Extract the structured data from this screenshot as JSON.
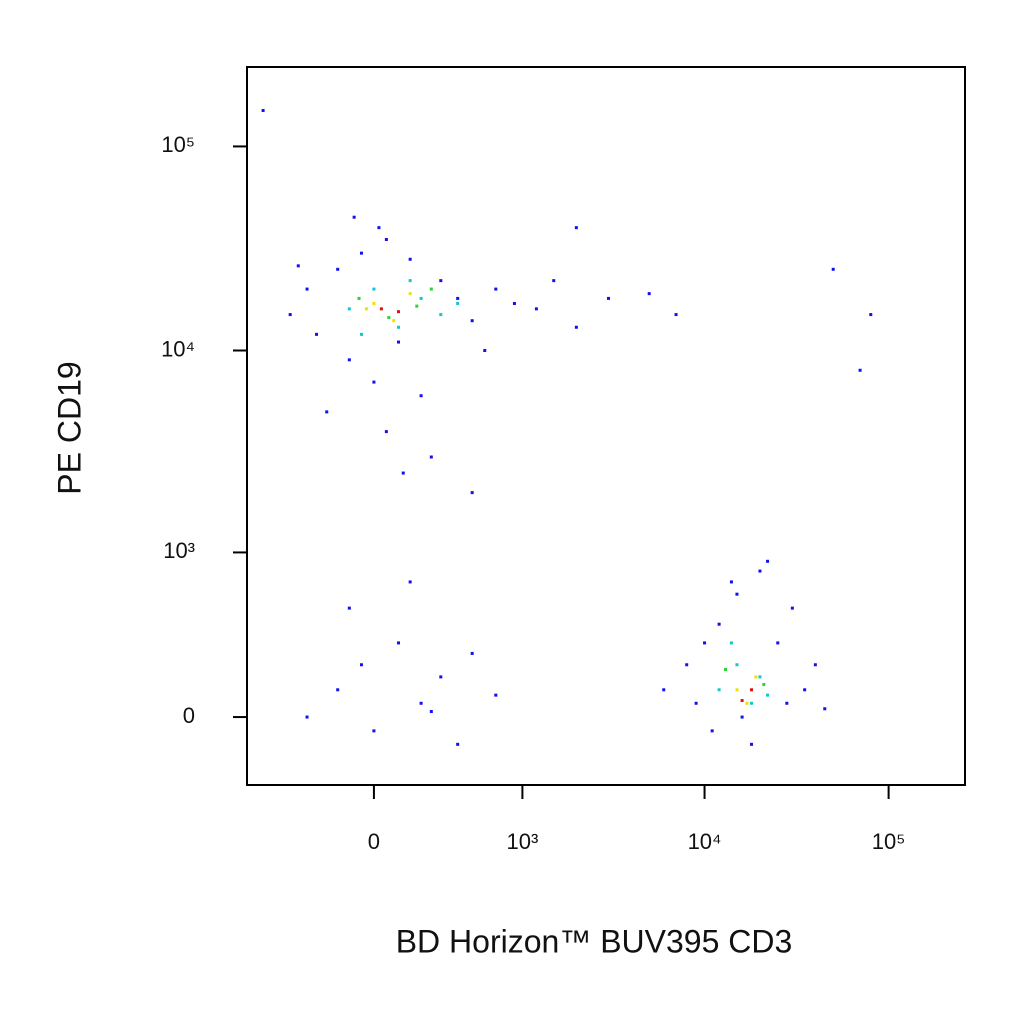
{
  "chart_data": {
    "type": "scatter",
    "x_label": "BD Horizon™ BUV395 CD3",
    "y_label": "PE  CD19",
    "xscale": "biexponential",
    "yscale": "biexponential",
    "xlim": [
      -750,
      260000
    ],
    "ylim": [
      -270,
      245000
    ],
    "xticks": [
      0,
      {
        "value": 1000,
        "label": "10³"
      },
      {
        "value": 10000,
        "label": "10⁴"
      },
      {
        "value": 100000,
        "label": "10⁵"
      }
    ],
    "yticks": [
      0,
      {
        "value": 1000,
        "label": "10³"
      },
      {
        "value": 10000,
        "label": "10⁴"
      },
      {
        "value": 100000,
        "label": "10⁵"
      }
    ],
    "series": [
      {
        "color": "#1010f0",
        "x": [
          -400,
          -300,
          -250,
          -150,
          -100,
          -50,
          0,
          50,
          100,
          150,
          200,
          300,
          400,
          500,
          700,
          900,
          1200,
          1500,
          2000,
          3000,
          5000,
          7000,
          -200,
          50,
          250,
          20,
          -80,
          600,
          120,
          -350,
          6000,
          8000,
          9000,
          12000,
          15000,
          20000,
          25000,
          30000,
          35000,
          40000,
          11000,
          18000,
          22000,
          28000,
          14000,
          16000,
          10000,
          45000,
          -300,
          -150,
          -50,
          0,
          100,
          200,
          300,
          400,
          500,
          700,
          -100,
          150,
          250,
          -600,
          2000,
          50000,
          70000,
          80000,
          500
        ],
        "values": [
          15000,
          20000,
          12000,
          25000,
          9000,
          30000,
          7000,
          35000,
          11000,
          28000,
          6000,
          22000,
          18000,
          14000,
          20000,
          17000,
          16000,
          22000,
          13000,
          18000,
          19000,
          15000,
          5000,
          4000,
          3000,
          40000,
          45000,
          10000,
          2500,
          26000,
          100,
          200,
          50,
          400,
          600,
          800,
          300,
          500,
          100,
          200,
          -50,
          -100,
          900,
          50,
          700,
          0,
          300,
          30,
          0,
          100,
          200,
          -50,
          300,
          50,
          150,
          -100,
          250,
          80,
          500,
          700,
          20,
          150000,
          40000,
          25000,
          8000,
          15000,
          2000
        ]
      },
      {
        "color": "#10c8c8",
        "x": [
          -100,
          0,
          100,
          200,
          300,
          -50,
          150,
          400,
          12000,
          15000,
          18000,
          20000,
          14000,
          22000
        ],
        "values": [
          16000,
          20000,
          13000,
          18000,
          15000,
          12000,
          22000,
          17000,
          100,
          200,
          50,
          150,
          300,
          80
        ]
      },
      {
        "color": "#30d030",
        "x": [
          -60,
          60,
          180,
          250,
          13000,
          21000
        ],
        "values": [
          18000,
          14500,
          16500,
          20000,
          180,
          120
        ]
      },
      {
        "color": "#f0e000",
        "x": [
          0,
          80,
          150,
          -30,
          15000,
          17000,
          19000
        ],
        "values": [
          17000,
          14000,
          19000,
          16000,
          100,
          50,
          150
        ]
      },
      {
        "color": "#e01010",
        "x": [
          30,
          100,
          16000,
          18000
        ],
        "values": [
          16000,
          15500,
          60,
          100
        ]
      }
    ]
  }
}
